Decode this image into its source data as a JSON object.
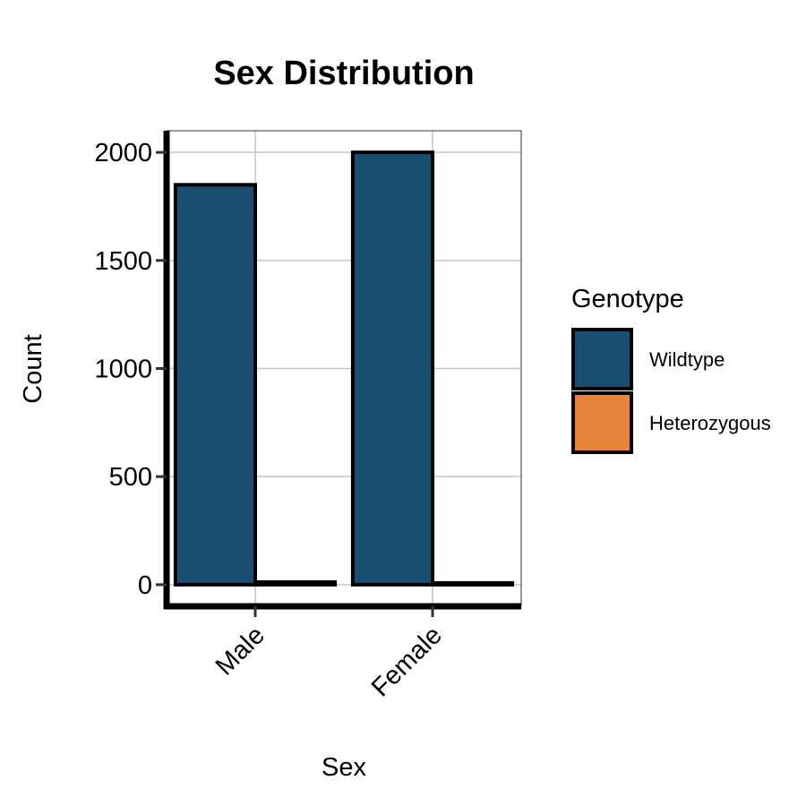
{
  "chart_data": {
    "type": "bar",
    "title": "Sex Distribution",
    "xlabel": "Sex",
    "ylabel": "Count",
    "categories": [
      "Male",
      "Female"
    ],
    "series": [
      {
        "name": "Wildtype",
        "color": "#1b4f72",
        "values": [
          1850,
          2000
        ]
      },
      {
        "name": "Heterozygous",
        "color": "#e8833a",
        "values": [
          12,
          8
        ]
      }
    ],
    "ylim": [
      -100,
      2100
    ],
    "yticks": [
      0,
      500,
      1000,
      1500,
      2000
    ],
    "grid": true,
    "legend": {
      "title": "Genotype",
      "placement": "right"
    }
  }
}
